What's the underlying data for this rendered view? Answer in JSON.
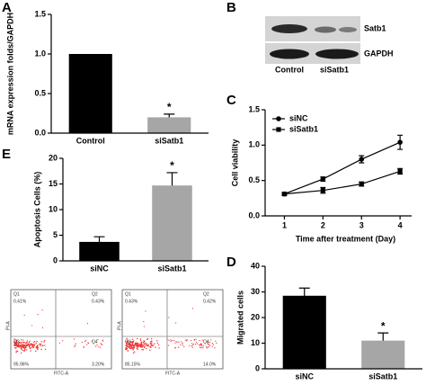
{
  "panel_labels": [
    "A",
    "B",
    "C",
    "D",
    "E"
  ],
  "chart_data": [
    {
      "type": "bar",
      "ylabel": "mRNA expression folds/GAPDH",
      "categories": [
        "Control",
        "siSatb1"
      ],
      "values": [
        1.0,
        0.2
      ],
      "errors": [
        null,
        0.04
      ],
      "colors": [
        "#000000",
        "#a6a6a6"
      ],
      "ylim": [
        0,
        1.5
      ],
      "yticks": [
        {
          "value": 0,
          "label": "0.0"
        },
        {
          "value": 0.5,
          "label": "0.5"
        },
        {
          "value": 1,
          "label": "1.0"
        },
        {
          "value": 1.5,
          "label": "1.5"
        }
      ],
      "annotation": "*"
    },
    {
      "type": "line",
      "xlabel": "Time after treatment (Day)",
      "ylabel": "Cell viability",
      "x": [
        1,
        2,
        3,
        4
      ],
      "series": [
        {
          "name": "siNC",
          "color": "#000000",
          "marker": "circle",
          "values": [
            0.31,
            0.52,
            0.8,
            1.04
          ],
          "errors": [
            0.02,
            0.03,
            0.05,
            0.1
          ]
        },
        {
          "name": "siSatb1",
          "color": "#000000",
          "marker": "square",
          "values": [
            0.31,
            0.36,
            0.45,
            0.63
          ],
          "errors": [
            0.02,
            0.04,
            0.03,
            0.04
          ]
        }
      ],
      "xlim": [
        0.5,
        4.3
      ],
      "xticks": [
        1,
        2,
        3,
        4
      ],
      "ylim": [
        0,
        1.5
      ],
      "yticks": [
        {
          "value": 0,
          "label": "0.0"
        },
        {
          "value": 0.5,
          "label": "0.5"
        },
        {
          "value": 1,
          "label": "1.0"
        },
        {
          "value": 1.5,
          "label": "1.5"
        }
      ],
      "legend": "upper left"
    },
    {
      "type": "bar",
      "ylabel": "Apoptosis Cells (%)",
      "categories": [
        "siNC",
        "siSatb1"
      ],
      "values": [
        3.7,
        14.7
      ],
      "errors": [
        1.0,
        2.5
      ],
      "colors": [
        "#000000",
        "#a6a6a6"
      ],
      "ylim": [
        0,
        20
      ],
      "yticks": [
        0,
        5,
        10,
        15,
        20
      ],
      "annotation": "*"
    },
    {
      "type": "bar",
      "ylabel": "Migrated cells",
      "categories": [
        "siNC",
        "siSatb1"
      ],
      "values": [
        28.5,
        11
      ],
      "errors": [
        3,
        3
      ],
      "colors": [
        "#000000",
        "#a6a6a6"
      ],
      "ylim": [
        0,
        40
      ],
      "yticks": [
        0,
        10,
        20,
        30,
        40
      ],
      "annotation": "*"
    }
  ],
  "blot": {
    "proteins": [
      "Satb1",
      "GAPDH"
    ],
    "lanes": [
      "Control",
      "siSatb1"
    ]
  },
  "flow": [
    {
      "y_axis": "PI-A",
      "x_axis": "FITC-A",
      "quadrants": [
        {
          "name": "Q1",
          "value": "0.41%"
        },
        {
          "name": "Q2",
          "value": "0.43%"
        },
        {
          "name": "Q3",
          "value": "95.96%"
        },
        {
          "name": "Q4",
          "value": "3.20%"
        }
      ]
    },
    {
      "y_axis": "PI-A",
      "x_axis": "FITC-A",
      "quadrants": [
        {
          "name": "Q1",
          "value": "0.43%"
        },
        {
          "name": "Q2",
          "value": "0.42%"
        },
        {
          "name": "Q3",
          "value": "85.15%"
        },
        {
          "name": "Q4",
          "value": "14.0%"
        }
      ]
    }
  ]
}
